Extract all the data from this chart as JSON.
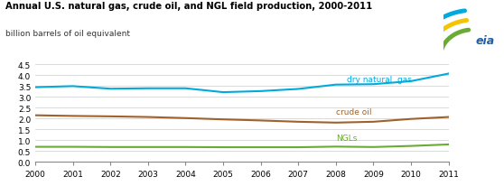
{
  "title": "Annual U.S. natural gas, crude oil, and NGL field production, 2000-2011",
  "subtitle": "billion barrels of oil equivalent",
  "years": [
    2000,
    2001,
    2002,
    2003,
    2004,
    2005,
    2006,
    2007,
    2008,
    2009,
    2010,
    2011
  ],
  "dry_natural_gas": [
    3.45,
    3.5,
    3.38,
    3.4,
    3.4,
    3.22,
    3.27,
    3.37,
    3.57,
    3.59,
    3.73,
    4.08
  ],
  "crude_oil": [
    2.15,
    2.12,
    2.1,
    2.07,
    2.02,
    1.96,
    1.91,
    1.85,
    1.81,
    1.85,
    1.98,
    2.07
  ],
  "ngls": [
    0.69,
    0.69,
    0.68,
    0.68,
    0.68,
    0.67,
    0.67,
    0.67,
    0.7,
    0.68,
    0.73,
    0.8
  ],
  "color_gas": "#00AADD",
  "color_oil": "#A0622A",
  "color_ngls": "#6AAB35",
  "ylim": [
    0.0,
    4.5
  ],
  "yticks": [
    0.0,
    0.5,
    1.0,
    1.5,
    2.0,
    2.5,
    3.0,
    3.5,
    4.0,
    4.5
  ],
  "label_gas": "dry natural  gas",
  "label_oil": "crude oil",
  "label_ngls": "NGLs",
  "background_color": "#FFFFFF",
  "grid_color": "#CCCCCC",
  "eia_colors": [
    "#00AADD",
    "#F5C400",
    "#6AAB35"
  ]
}
